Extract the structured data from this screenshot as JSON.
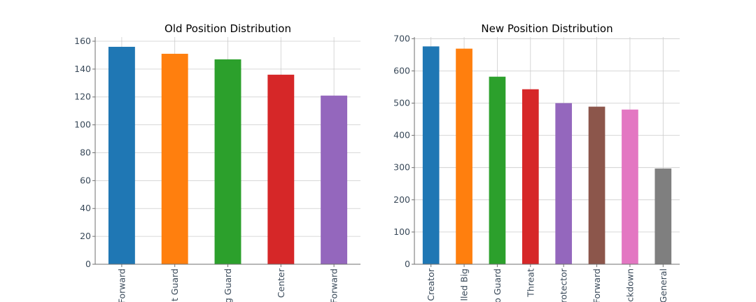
{
  "chart_data": [
    {
      "type": "bar",
      "title": "Old Position Distribution",
      "xlabel": "",
      "ylabel": "",
      "categories": [
        "Forward",
        "t Guard",
        "g Guard",
        "Center",
        "Forward"
      ],
      "values": [
        156,
        151,
        147,
        136,
        121
      ],
      "colors": [
        "#1f77b4",
        "#ff7f0e",
        "#2ca02c",
        "#d62728",
        "#9467bd"
      ],
      "ylim": [
        0,
        163
      ],
      "yticks": [
        0,
        20,
        40,
        60,
        80,
        100,
        120,
        140,
        160
      ],
      "grid": true,
      "legend": "none"
    },
    {
      "type": "bar",
      "title": "New Position Distribution",
      "xlabel": "",
      "ylabel": "",
      "categories": [
        "Creator",
        "lled Big",
        "o Guard",
        "Threat",
        "rotector",
        "Forward",
        "ckdown",
        "General"
      ],
      "values": [
        676,
        669,
        582,
        543,
        500,
        489,
        480,
        297
      ],
      "colors": [
        "#1f77b4",
        "#ff7f0e",
        "#2ca02c",
        "#d62728",
        "#9467bd",
        "#8c564b",
        "#e377c2",
        "#7f7f7f"
      ],
      "ylim": [
        0,
        705
      ],
      "yticks": [
        0,
        100,
        200,
        300,
        400,
        500,
        600,
        700
      ],
      "grid": true,
      "legend": "none"
    }
  ]
}
